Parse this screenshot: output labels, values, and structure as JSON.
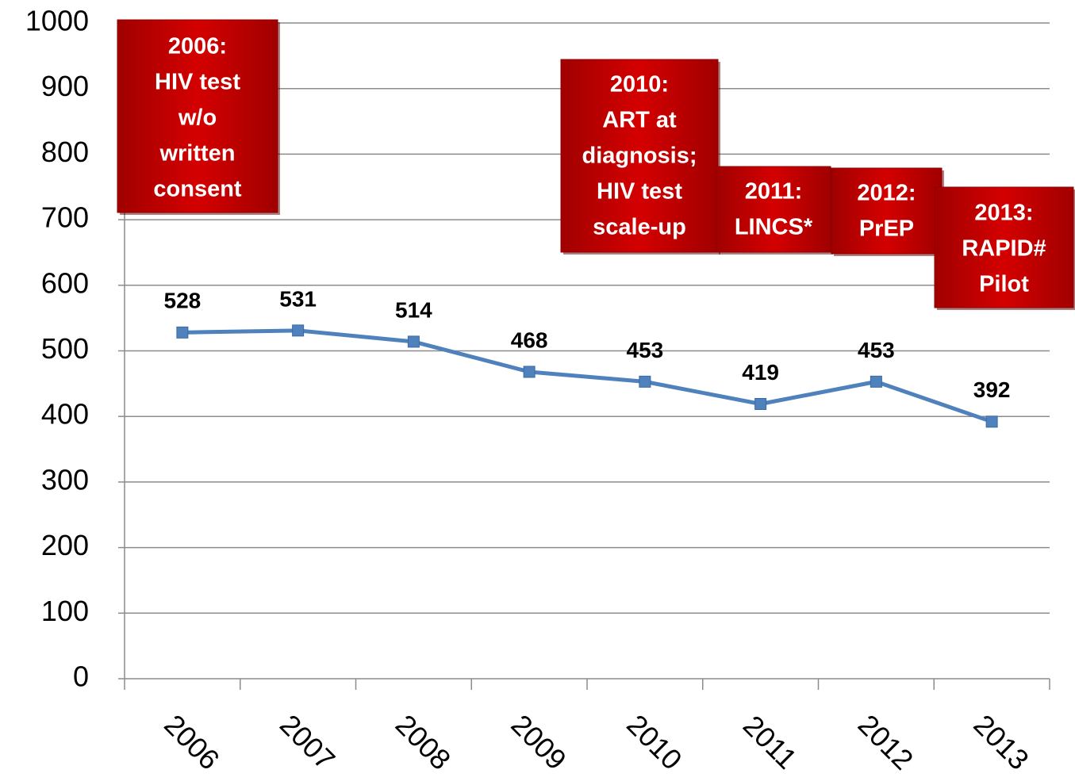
{
  "chart_data": {
    "type": "line",
    "categories": [
      "2006",
      "2007",
      "2008",
      "2009",
      "2010",
      "2011",
      "2012",
      "2013"
    ],
    "series": [
      {
        "name": "Cases",
        "color": "#4f81bd",
        "values": [
          528,
          531,
          514,
          468,
          453,
          419,
          453,
          392
        ]
      }
    ],
    "ylim": [
      0,
      1000
    ],
    "yticks": [
      0,
      100,
      200,
      300,
      400,
      500,
      600,
      700,
      800,
      900,
      1000
    ],
    "grid": true,
    "annotations": [
      {
        "lines": [
          "2006:",
          "HIV test",
          "w/o",
          "written",
          "consent"
        ]
      },
      {
        "lines": [
          "2010:",
          "ART at",
          "diagnosis;",
          "HIV test",
          "scale-up"
        ]
      },
      {
        "lines": [
          "2011:",
          "LINCS*"
        ]
      },
      {
        "lines": [
          "2012:",
          "PrEP"
        ]
      },
      {
        "lines": [
          "2013:",
          "RAPID#",
          "Pilot"
        ]
      }
    ]
  }
}
